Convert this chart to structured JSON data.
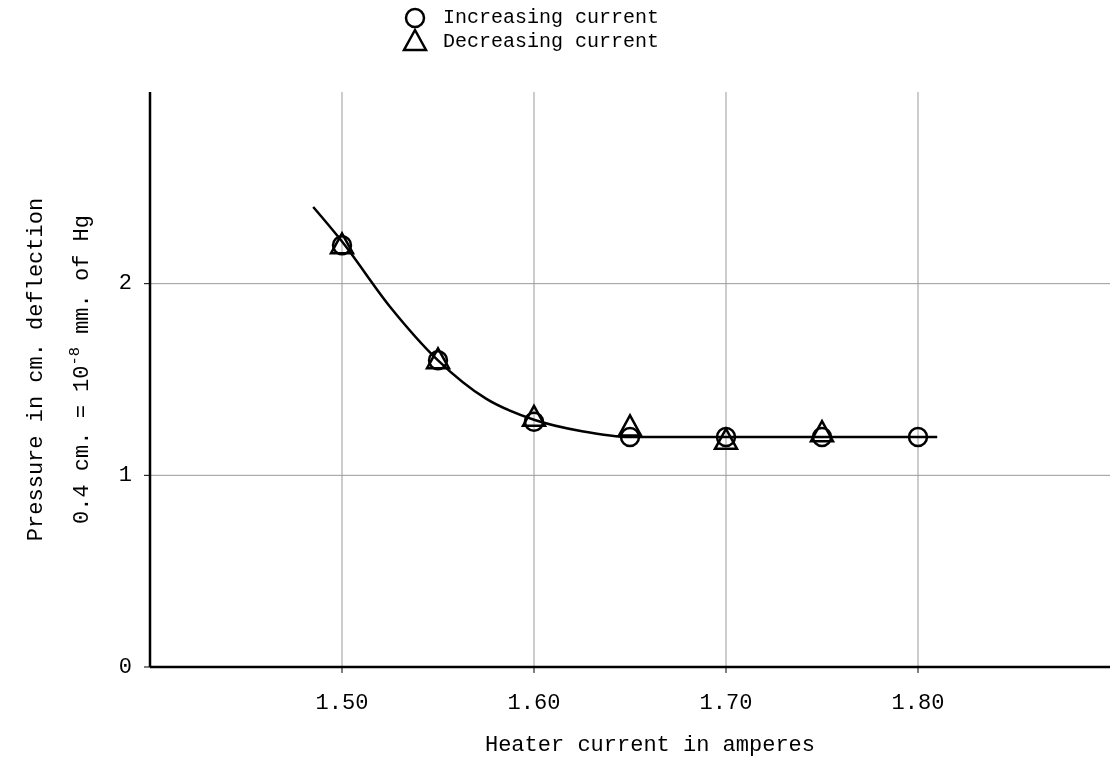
{
  "chart_data": {
    "type": "scatter",
    "xlabel": "Heater current in amperes",
    "ylabel": "Pressure in cm. deflection\n0.4 cm. = 10$^{-8}$ mm. of Hg",
    "xlim": [
      1.4,
      1.9
    ],
    "xticks": [
      {
        "value": 1.5,
        "label": "1.50"
      },
      {
        "value": 1.6,
        "label": "1.60"
      },
      {
        "value": 1.7,
        "label": "1.70"
      },
      {
        "value": 1.8,
        "label": "1.80"
      }
    ],
    "ylim": [
      0,
      3
    ],
    "yticks": [
      0,
      1,
      2
    ],
    "grid": true,
    "legend": "top",
    "series": [
      {
        "name": "Increasing current",
        "type": "scatter",
        "marker": "circle",
        "color": "#000000",
        "x": [
          1.5,
          1.55,
          1.6,
          1.65,
          1.7,
          1.75,
          1.8
        ],
        "values": [
          2.2,
          1.6,
          1.28,
          1.2,
          1.2,
          1.2,
          1.2
        ]
      },
      {
        "name": "Decreasing current",
        "type": "scatter",
        "marker": "triangle",
        "color": "#000000",
        "x": [
          1.5,
          1.55,
          1.6,
          1.65,
          1.7,
          1.75
        ],
        "values": [
          2.2,
          1.6,
          1.3,
          1.25,
          1.18,
          1.22
        ]
      },
      {
        "type": "line",
        "marker": "none",
        "color": "#000000",
        "x": [
          1.485,
          1.5,
          1.525,
          1.55,
          1.575,
          1.6,
          1.625,
          1.65,
          1.7,
          1.81
        ],
        "values": [
          2.4,
          2.22,
          1.88,
          1.6,
          1.4,
          1.29,
          1.23,
          1.2,
          1.2,
          1.2
        ]
      }
    ]
  }
}
